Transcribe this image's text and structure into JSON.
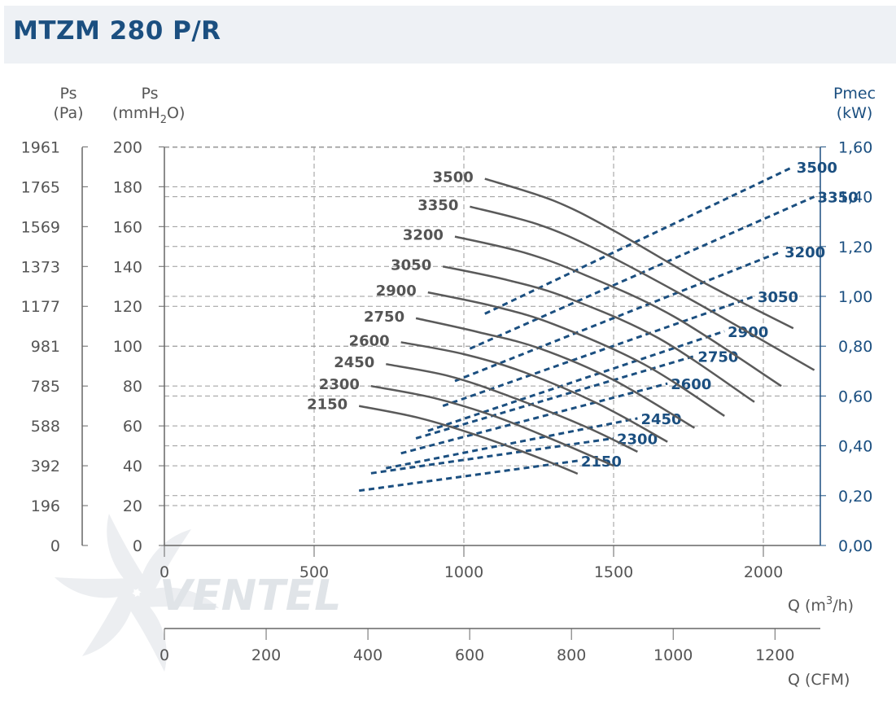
{
  "title": "MTZM 280 P/R",
  "logo_text": "VENTEL",
  "colors": {
    "accent": "#1b4f80",
    "curve": "#5a5a5a",
    "grid": "#9a9a9a",
    "header_bg": "#eef1f5"
  },
  "axes": {
    "left_pa_label": [
      "Ps",
      "(Pa)"
    ],
    "left_mm_label": [
      "Ps",
      "(mmH",
      "2",
      "O)"
    ],
    "right_label": [
      "Pmec",
      "(kW)"
    ],
    "x_m3h_label": [
      "Q (m",
      "3",
      "/h)"
    ],
    "x_cfm_label": "Q (CFM)",
    "pa_ticks": [
      "1961",
      "1765",
      "1569",
      "1373",
      "1177",
      "981",
      "785",
      "588",
      "392",
      "196",
      "0"
    ],
    "mm_ticks": [
      "200",
      "180",
      "160",
      "140",
      "120",
      "100",
      "80",
      "60",
      "40",
      "20",
      "0"
    ],
    "kw_ticks": [
      "1,60",
      "1,40",
      "1,20",
      "1,00",
      "0,80",
      "0,60",
      "0,40",
      "0,20",
      "0,00"
    ],
    "x_ticks": [
      "0",
      "500",
      "1000",
      "1500",
      "2000"
    ],
    "cfm_ticks": [
      "0",
      "200",
      "400",
      "600",
      "800",
      "1000",
      "1200"
    ]
  },
  "chart_data": {
    "type": "line",
    "title": "MTZM 280 P/R",
    "xlabel": "Q (m3/h)",
    "ylabel_left": "Ps (mmH2O)",
    "ylabel_right": "Pmec (kW)",
    "xlim": [
      0,
      2200
    ],
    "ylim": [
      0,
      200
    ],
    "y2lim": [
      0,
      1.6
    ],
    "grid": true,
    "pressure_series": [
      {
        "name": "3500",
        "points": [
          [
            1070,
            184
          ],
          [
            1300,
            173
          ],
          [
            1500,
            158
          ],
          [
            1800,
            132
          ],
          [
            2100,
            109
          ]
        ]
      },
      {
        "name": "3350",
        "points": [
          [
            1020,
            170
          ],
          [
            1250,
            161
          ],
          [
            1450,
            148
          ],
          [
            1750,
            124
          ],
          [
            2170,
            88
          ]
        ]
      },
      {
        "name": "3200",
        "points": [
          [
            970,
            155
          ],
          [
            1200,
            147
          ],
          [
            1400,
            136
          ],
          [
            1700,
            115
          ],
          [
            2060,
            80
          ]
        ]
      },
      {
        "name": "3050",
        "points": [
          [
            930,
            140
          ],
          [
            1150,
            133
          ],
          [
            1350,
            124
          ],
          [
            1650,
            104
          ],
          [
            1970,
            72
          ]
        ]
      },
      {
        "name": "2900",
        "points": [
          [
            880,
            127
          ],
          [
            1100,
            120
          ],
          [
            1300,
            111
          ],
          [
            1600,
            91
          ],
          [
            1870,
            65
          ]
        ]
      },
      {
        "name": "2750",
        "points": [
          [
            840,
            114
          ],
          [
            1050,
            107
          ],
          [
            1250,
            99
          ],
          [
            1500,
            83
          ],
          [
            1770,
            59
          ]
        ]
      },
      {
        "name": "2600",
        "points": [
          [
            790,
            102
          ],
          [
            1000,
            96
          ],
          [
            1200,
            87
          ],
          [
            1450,
            71
          ],
          [
            1680,
            52
          ]
        ]
      },
      {
        "name": "2450",
        "points": [
          [
            740,
            91
          ],
          [
            950,
            85
          ],
          [
            1150,
            75
          ],
          [
            1400,
            60
          ],
          [
            1580,
            47
          ]
        ]
      },
      {
        "name": "2300",
        "points": [
          [
            690,
            80
          ],
          [
            900,
            74
          ],
          [
            1100,
            65
          ],
          [
            1300,
            53
          ],
          [
            1500,
            40
          ]
        ]
      },
      {
        "name": "2150",
        "points": [
          [
            650,
            70
          ],
          [
            850,
            64
          ],
          [
            1050,
            55
          ],
          [
            1250,
            44
          ],
          [
            1380,
            36
          ]
        ]
      }
    ],
    "power_series": [
      {
        "name": "3500",
        "points": [
          [
            1070,
            0.93
          ],
          [
            2100,
            1.52
          ]
        ]
      },
      {
        "name": "3350",
        "points": [
          [
            1020,
            0.79
          ],
          [
            2170,
            1.4
          ]
        ]
      },
      {
        "name": "3200",
        "points": [
          [
            970,
            0.66
          ],
          [
            2060,
            1.18
          ]
        ]
      },
      {
        "name": "3050",
        "points": [
          [
            930,
            0.56
          ],
          [
            1970,
            1.0
          ]
        ]
      },
      {
        "name": "2900",
        "points": [
          [
            880,
            0.46
          ],
          [
            1870,
            0.86
          ]
        ]
      },
      {
        "name": "2750",
        "points": [
          [
            840,
            0.43
          ],
          [
            1770,
            0.76
          ]
        ]
      },
      {
        "name": "2600",
        "points": [
          [
            790,
            0.37
          ],
          [
            1680,
            0.65
          ]
        ]
      },
      {
        "name": "2450",
        "points": [
          [
            740,
            0.31
          ],
          [
            1580,
            0.51
          ]
        ]
      },
      {
        "name": "2300",
        "points": [
          [
            690,
            0.29
          ],
          [
            1500,
            0.43
          ]
        ]
      },
      {
        "name": "2150",
        "points": [
          [
            650,
            0.22
          ],
          [
            1380,
            0.34
          ]
        ]
      }
    ]
  }
}
